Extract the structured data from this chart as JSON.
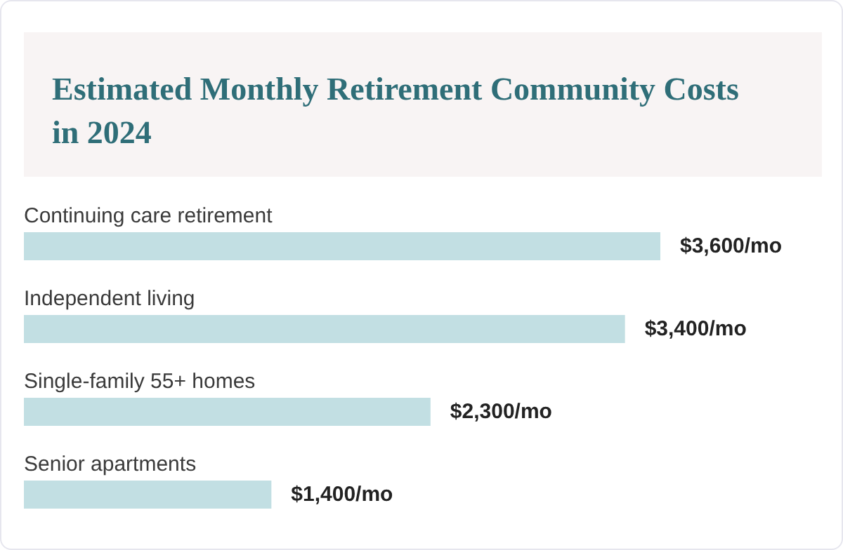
{
  "chart_data": {
    "type": "bar",
    "orientation": "horizontal",
    "title": "Estimated Monthly Retirement Community Costs in 2024",
    "categories": [
      "Continuing care retirement",
      "Independent living",
      "Single-family 55+ homes",
      "Senior apartments"
    ],
    "values": [
      3600,
      3400,
      2300,
      1400
    ],
    "value_labels": [
      "$3,600/mo",
      "$3,400/mo",
      "$2,300/mo",
      "$1,400/mo"
    ],
    "color": "#c2dfe3"
  }
}
